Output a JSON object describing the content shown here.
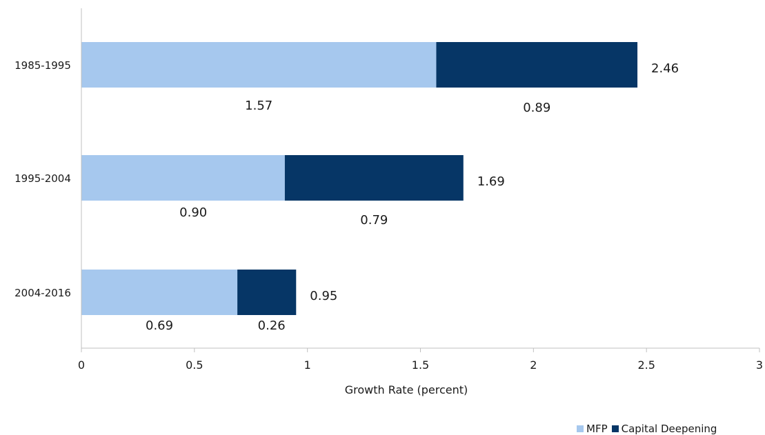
{
  "chart_data": {
    "type": "bar",
    "orientation": "horizontal",
    "stacked": true,
    "categories": [
      "1985-1995",
      "1995-2004",
      "2004-2016"
    ],
    "series": [
      {
        "name": "MFP",
        "values": [
          1.57,
          0.9,
          0.69
        ],
        "labels": [
          "1.57",
          "0.90",
          "0.69"
        ],
        "color": "#a6c8ee"
      },
      {
        "name": "Capital Deepening",
        "values": [
          0.89,
          0.79,
          0.26
        ],
        "labels": [
          "0.89",
          "0.79",
          "0.26"
        ],
        "color": "#063666"
      }
    ],
    "totals": [
      2.46,
      1.69,
      0.95
    ],
    "total_labels": [
      "2.46",
      "1.69",
      "0.95"
    ],
    "xlabel": "Growth Rate (percent)",
    "ylabel": "",
    "xlim": [
      0,
      3
    ],
    "x_ticks": [
      0,
      0.5,
      1,
      1.5,
      2,
      2.5,
      3
    ],
    "x_tick_labels": [
      "0",
      "0.5",
      "1",
      "1.5",
      "2",
      "2.5",
      "3"
    ],
    "grid": false,
    "legend_position": "bottom-right"
  }
}
